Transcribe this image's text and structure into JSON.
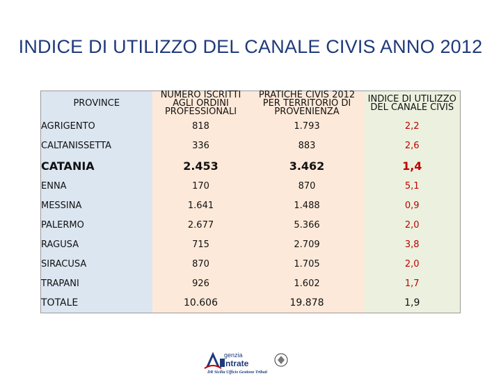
{
  "title": "INDICE DI UTILIZZO DEL CANALE CIVIS ANNO 2012",
  "table": {
    "headers": {
      "province": "PROVINCE",
      "iscritti": "NUMERO ISCRITTI AGLI ORDINI PROFESSIONALI",
      "pratiche": "PRATICHE CIVIS 2012 PER TERRITORIO DI PROVENIENZA",
      "indice": "INDICE DI UTILIZZO DEL CANALE CIVIS"
    },
    "rows": [
      {
        "province": "AGRIGENTO",
        "iscritti": "818",
        "pratiche": "1.793",
        "indice": "2,2"
      },
      {
        "province": "CALTANISSETTA",
        "iscritti": "336",
        "pratiche": "883",
        "indice": "2,6"
      },
      {
        "province": "CATANIA",
        "iscritti": "2.453",
        "pratiche": "3.462",
        "indice": "1,4"
      },
      {
        "province": "ENNA",
        "iscritti": "170",
        "pratiche": "870",
        "indice": "5,1"
      },
      {
        "province": "MESSINA",
        "iscritti": "1.641",
        "pratiche": "1.488",
        "indice": "0,9"
      },
      {
        "province": "PALERMO",
        "iscritti": "2.677",
        "pratiche": "5.366",
        "indice": "2,0"
      },
      {
        "province": "RAGUSA",
        "iscritti": "715",
        "pratiche": "2.709",
        "indice": "3,8"
      },
      {
        "province": "SIRACUSA",
        "iscritti": "870",
        "pratiche": "1.705",
        "indice": "2,0"
      },
      {
        "province": "TRAPANI",
        "iscritti": "926",
        "pratiche": "1.602",
        "indice": "1,7"
      },
      {
        "province": "TOTALE",
        "iscritti": "10.606",
        "pratiche": "19.878",
        "indice": "1,9"
      }
    ]
  },
  "colors": {
    "title": "#1f3a7a",
    "province_bg": "#dce6f1",
    "number_bg": "#fde9d9",
    "index_bg": "#ebf1de",
    "index_text": "#c00000"
  },
  "logo": {
    "line1": "genzia",
    "line2": "ntrate",
    "caption": "DR Sicilia Ufficio Gestione Tributi"
  }
}
